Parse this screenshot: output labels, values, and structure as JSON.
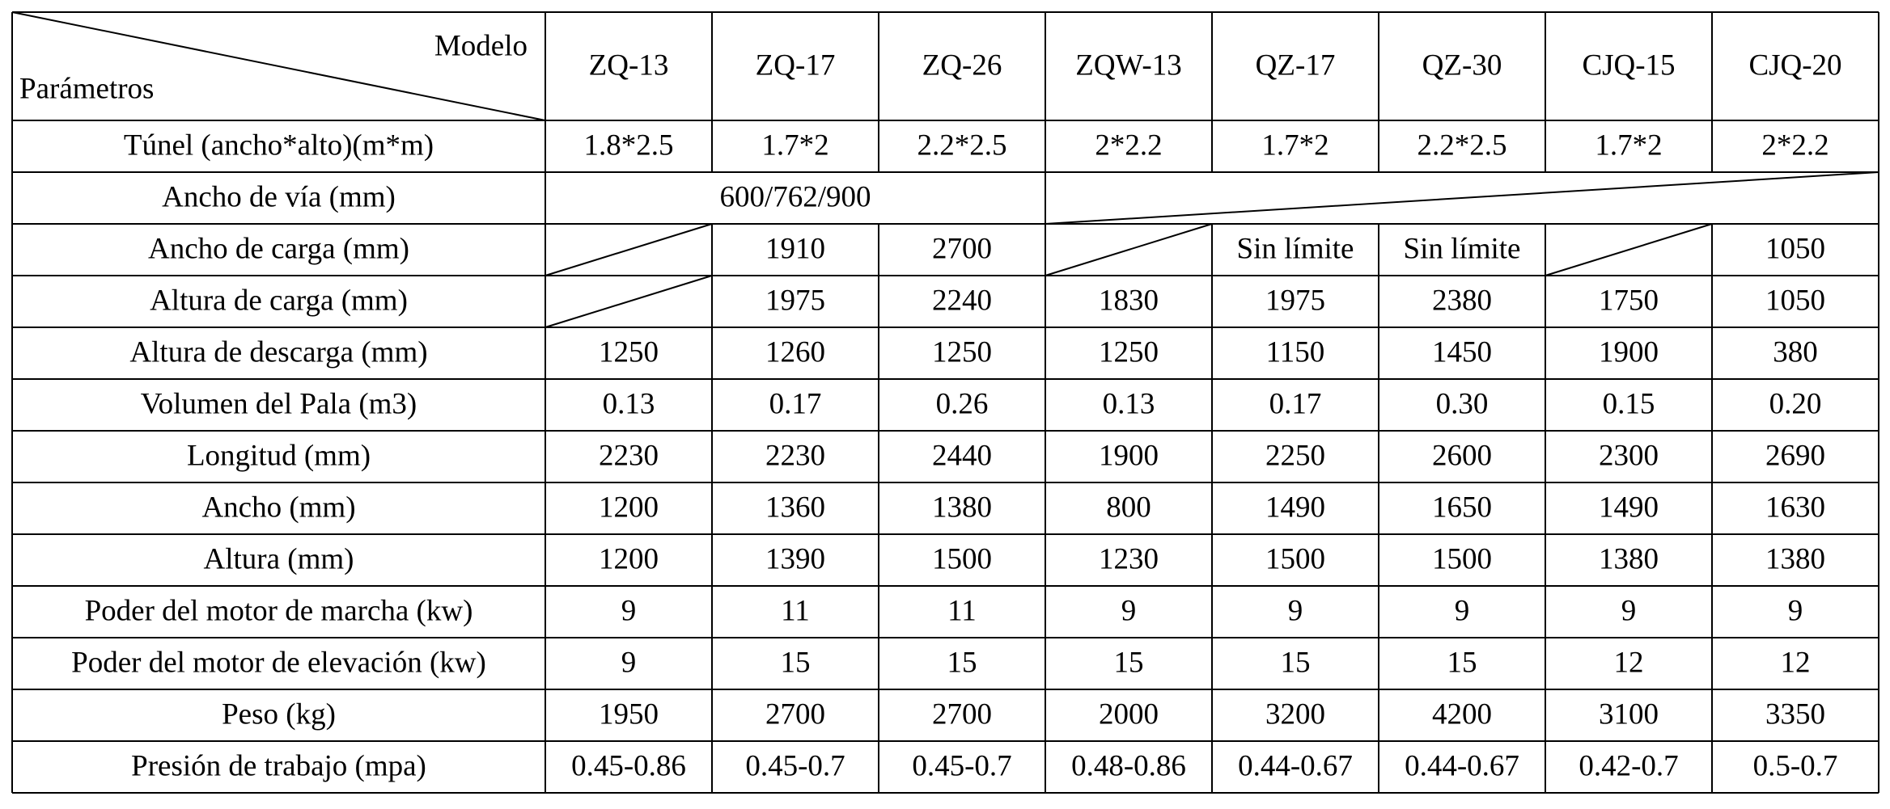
{
  "table": {
    "corner_top": "Modelo",
    "corner_bottom": "Parámetros",
    "models": [
      "ZQ-13",
      "ZQ-17",
      "ZQ-26",
      "ZQW-13",
      "QZ-17",
      "QZ-30",
      "CJQ-15",
      "CJQ-20"
    ],
    "rows": [
      {
        "label": "Túnel (ancho*alto)(m*m)",
        "cells": [
          "1.8*2.5",
          "1.7*2",
          "2.2*2.5",
          "2*2.2",
          "1.7*2",
          "2.2*2.5",
          "1.7*2",
          "2*2.2"
        ]
      },
      {
        "label": "Ancho de vía (mm)",
        "cells": [
          "600/762/900",
          null,
          null,
          null,
          null,
          null,
          null,
          null
        ]
      },
      {
        "label": "Ancho de carga (mm)",
        "cells": [
          null,
          "1910",
          "2700",
          null,
          "Sin límite",
          "Sin límite",
          null,
          "1050"
        ]
      },
      {
        "label": "Altura de carga (mm)",
        "cells": [
          null,
          "1975",
          "2240",
          "1830",
          "1975",
          "2380",
          "1750",
          "1050"
        ]
      },
      {
        "label": "Altura de descarga (mm)",
        "cells": [
          "1250",
          "1260",
          "1250",
          "1250",
          "1150",
          "1450",
          "1900",
          "380"
        ]
      },
      {
        "label": "Volumen del Pala (m3)",
        "cells": [
          "0.13",
          "0.17",
          "0.26",
          "0.13",
          "0.17",
          "0.30",
          "0.15",
          "0.20"
        ]
      },
      {
        "label": "Longitud (mm)",
        "cells": [
          "2230",
          "2230",
          "2440",
          "1900",
          "2250",
          "2600",
          "2300",
          "2690"
        ]
      },
      {
        "label": "Ancho (mm)",
        "cells": [
          "1200",
          "1360",
          "1380",
          "800",
          "1490",
          "1650",
          "1490",
          "1630"
        ]
      },
      {
        "label": "Altura (mm)",
        "cells": [
          "1200",
          "1390",
          "1500",
          "1230",
          "1500",
          "1500",
          "1380",
          "1380"
        ]
      },
      {
        "label": "Poder del motor de marcha (kw)",
        "cells": [
          "9",
          "11",
          "11",
          "9",
          "9",
          "9",
          "9",
          "9"
        ]
      },
      {
        "label": "Poder del motor de elevación (kw)",
        "cells": [
          "9",
          "15",
          "15",
          "15",
          "15",
          "15",
          "12",
          "12"
        ]
      },
      {
        "label": "Peso (kg)",
        "cells": [
          "1950",
          "2700",
          "2700",
          "2000",
          "3200",
          "4200",
          "3100",
          "3350"
        ]
      },
      {
        "label": "Presión de trabajo (mpa)",
        "cells": [
          "0.45-0.86",
          "0.45-0.7",
          "0.45-0.7",
          "0.48-0.86",
          "0.44-0.67",
          "0.44-0.67",
          "0.42-0.7",
          "0.5-0.7"
        ]
      }
    ]
  }
}
